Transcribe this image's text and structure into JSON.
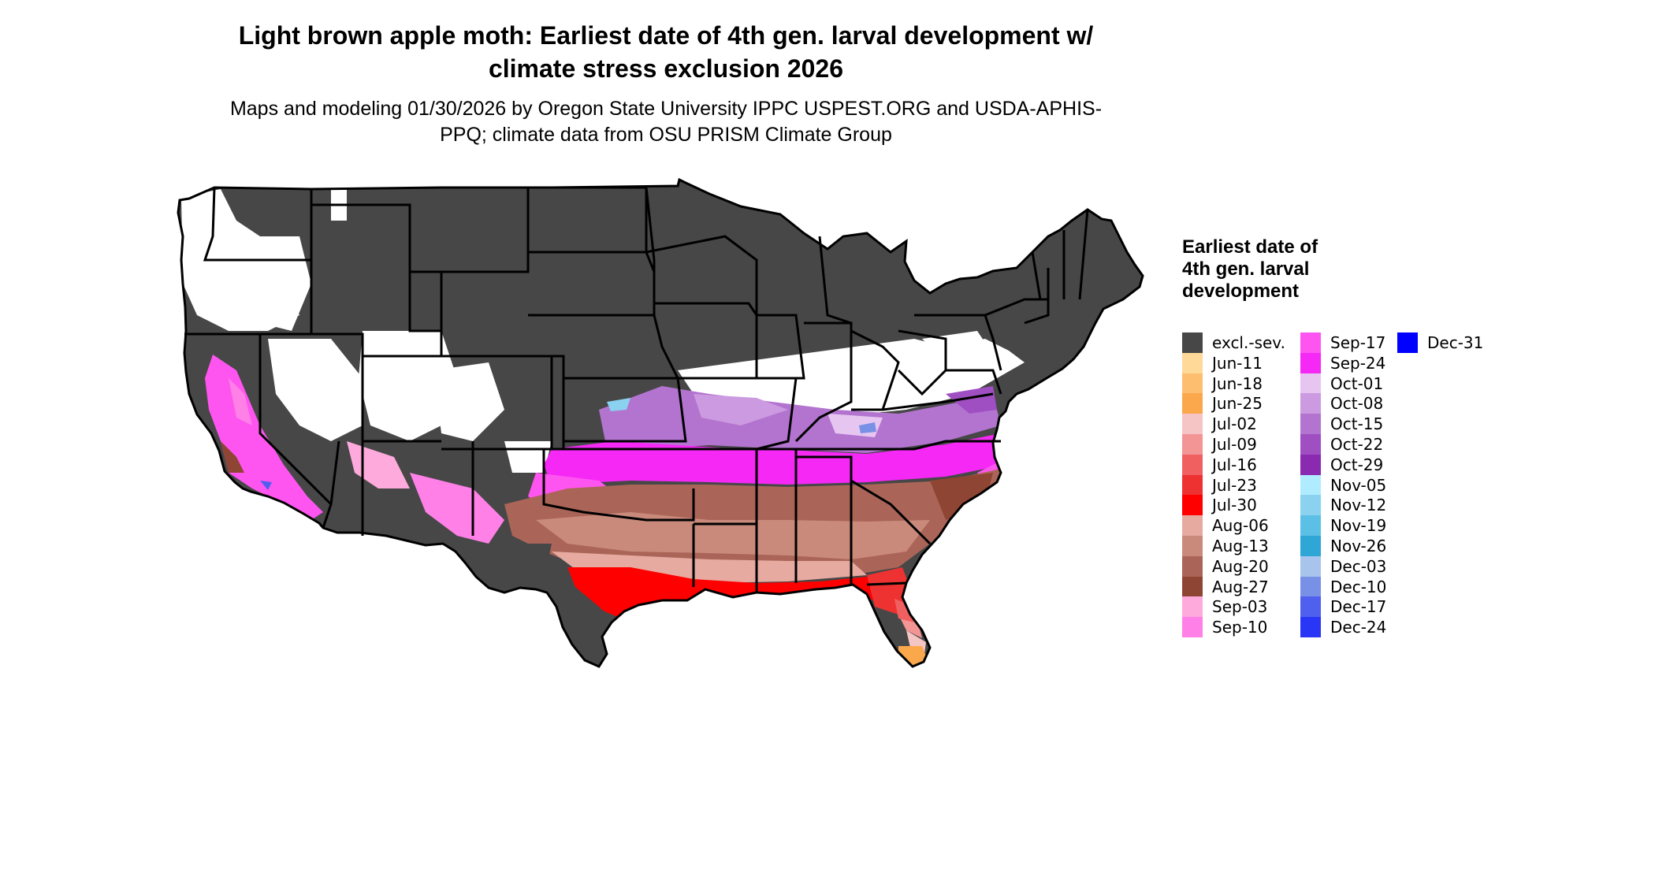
{
  "title": "Light brown apple moth: Earliest date of 4th gen. larval development w/ climate stress exclusion 2026",
  "subtitle": "Maps and modeling 01/30/2026 by Oregon State University IPPC USPEST.ORG and USDA-APHIS-PPQ; climate data from OSU PRISM Climate Group",
  "legend": {
    "title": "Earliest date of 4th gen. larval development",
    "items": [
      {
        "label": "excl.-sev.",
        "color": "#474747"
      },
      {
        "label": "Jun-11",
        "color": "#ffd998"
      },
      {
        "label": "Jun-18",
        "color": "#fdbf6f"
      },
      {
        "label": "Jun-25",
        "color": "#fba74c"
      },
      {
        "label": "Jul-02",
        "color": "#f5c4c4"
      },
      {
        "label": "Jul-09",
        "color": "#f39595"
      },
      {
        "label": "Jul-16",
        "color": "#f06060"
      },
      {
        "label": "Jul-23",
        "color": "#ee3232"
      },
      {
        "label": "Jul-30",
        "color": "#ff0000"
      },
      {
        "label": "Aug-06",
        "color": "#e6aaa0"
      },
      {
        "label": "Aug-13",
        "color": "#c98a7c"
      },
      {
        "label": "Aug-20",
        "color": "#aa6558"
      },
      {
        "label": "Aug-27",
        "color": "#8f4533"
      },
      {
        "label": "Sep-03",
        "color": "#ffaadd"
      },
      {
        "label": "Sep-10",
        "color": "#ff80e6"
      },
      {
        "label": "Sep-17",
        "color": "#ff55f0"
      },
      {
        "label": "Sep-24",
        "color": "#f528f5"
      },
      {
        "label": "Oct-01",
        "color": "#e6c6f0"
      },
      {
        "label": "Oct-08",
        "color": "#cc9ae0"
      },
      {
        "label": "Oct-15",
        "color": "#b374d0"
      },
      {
        "label": "Oct-22",
        "color": "#9f4fc2"
      },
      {
        "label": "Oct-29",
        "color": "#8a2ab0"
      },
      {
        "label": "Nov-05",
        "color": "#b0ecff"
      },
      {
        "label": "Nov-12",
        "color": "#8ad2f0"
      },
      {
        "label": "Nov-19",
        "color": "#5cbfe6"
      },
      {
        "label": "Nov-26",
        "color": "#2ea6d6"
      },
      {
        "label": "Dec-03",
        "color": "#a8c4ec"
      },
      {
        "label": "Dec-10",
        "color": "#7890e6"
      },
      {
        "label": "Dec-17",
        "color": "#5060ee"
      },
      {
        "label": "Dec-24",
        "color": "#2a36f5"
      },
      {
        "label": "Dec-31",
        "color": "#0000ff"
      }
    ]
  }
}
